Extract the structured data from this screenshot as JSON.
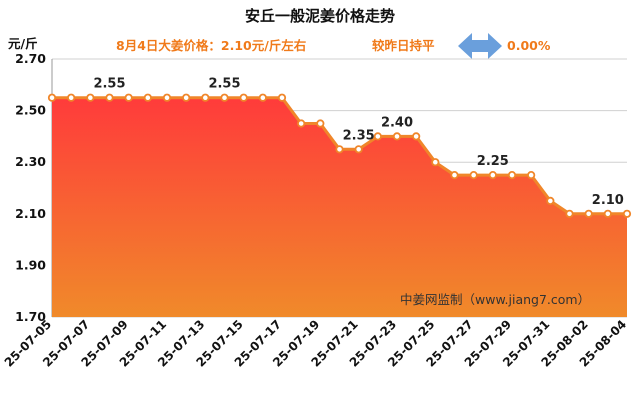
{
  "title": "安丘一般泥姜价格走势",
  "subtitle": {
    "price_text": "8月4日大姜价格：2.10元/斤左右",
    "compare_text": "较昨日持平",
    "change_text": "0.00%"
  },
  "watermark": "中姜网监制（www.jiang7.com）",
  "colors": {
    "line": "#f0862a",
    "area_top": "#ff3b3b",
    "area_bottom": "#f08a2a",
    "accent_text": "#f07a1a",
    "arrow": "#6a9fdc",
    "grid": "#d0d0d0"
  },
  "chart_data": {
    "type": "area",
    "y_unit_label": "元/斤",
    "ylim": [
      1.7,
      2.7
    ],
    "yticks": [
      1.7,
      1.9,
      2.1,
      2.3,
      2.5,
      2.7
    ],
    "ytick_labels": [
      "1.70",
      "1.90",
      "2.10",
      "2.30",
      "2.50",
      "2.70"
    ],
    "grid": "horizontal",
    "x_tick_labels": [
      "25-07-05",
      "25-07-07",
      "25-07-09",
      "25-07-11",
      "25-07-13",
      "25-07-15",
      "25-07-17",
      "25-07-19",
      "25-07-21",
      "25-07-23",
      "25-07-25",
      "25-07-27",
      "25-07-29",
      "25-07-31",
      "25-08-02",
      "25-08-04"
    ],
    "x": [
      "25-07-05",
      "25-07-06",
      "25-07-07",
      "25-07-08",
      "25-07-09",
      "25-07-10",
      "25-07-11",
      "25-07-12",
      "25-07-13",
      "25-07-14",
      "25-07-15",
      "25-07-16",
      "25-07-17",
      "25-07-18",
      "25-07-19",
      "25-07-20",
      "25-07-21",
      "25-07-22",
      "25-07-23",
      "25-07-24",
      "25-07-25",
      "25-07-26",
      "25-07-27",
      "25-07-28",
      "25-07-29",
      "25-07-30",
      "25-07-31",
      "25-08-01",
      "25-08-02",
      "25-08-03",
      "25-08-04"
    ],
    "values": [
      2.55,
      2.55,
      2.55,
      2.55,
      2.55,
      2.55,
      2.55,
      2.55,
      2.55,
      2.55,
      2.55,
      2.55,
      2.55,
      2.45,
      2.45,
      2.35,
      2.35,
      2.4,
      2.4,
      2.4,
      2.3,
      2.25,
      2.25,
      2.25,
      2.25,
      2.25,
      2.15,
      2.1,
      2.1,
      2.1,
      2.1
    ],
    "data_labels": [
      {
        "index": 3,
        "text": "2.55"
      },
      {
        "index": 9,
        "text": "2.55"
      },
      {
        "index": 16,
        "text": "2.35"
      },
      {
        "index": 18,
        "text": "2.40"
      },
      {
        "index": 23,
        "text": "2.25"
      },
      {
        "index": 29,
        "text": "2.10"
      }
    ]
  }
}
